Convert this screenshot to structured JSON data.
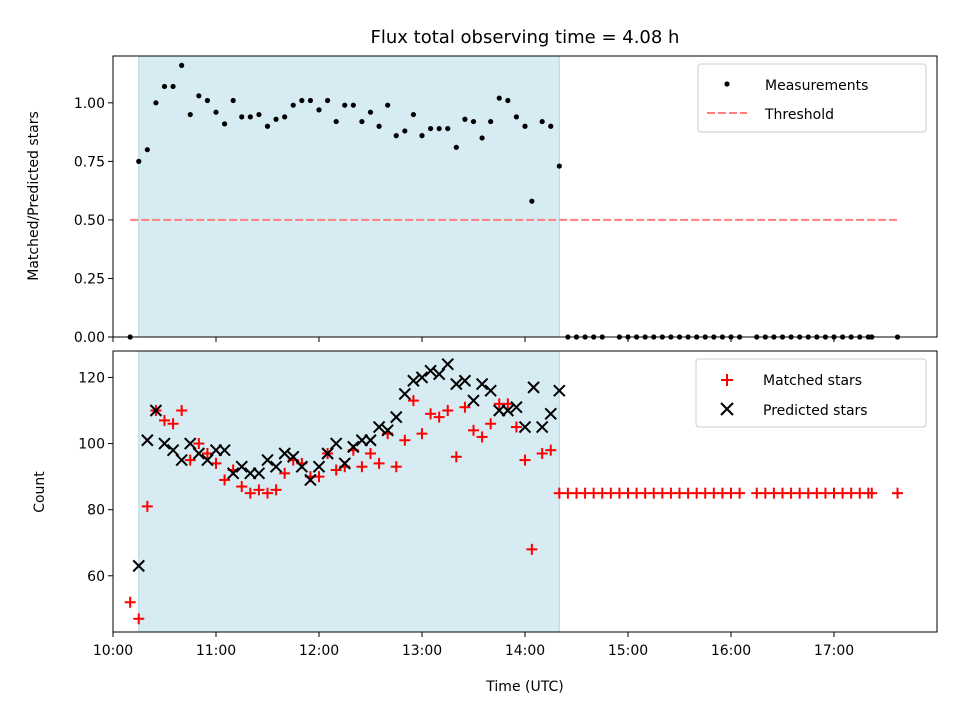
{
  "title": "Flux total observing time = 4.08 h",
  "colors": {
    "shade": "#add8e6",
    "measurement": "#000000",
    "threshold": "#ff7f7f",
    "matched": "#ff0000",
    "predicted": "#000000"
  },
  "chart_data": [
    {
      "type": "scatter",
      "ylabel": "Matched/Predicted stars",
      "xlim": [
        "10:00",
        "18:00"
      ],
      "ylim": [
        0,
        1.2
      ],
      "y_ticks": [
        "0.00",
        "0.25",
        "0.50",
        "0.75",
        "1.00"
      ],
      "observing_window": [
        "10:15",
        "14:20"
      ],
      "threshold": {
        "value": 0.5,
        "x_range": [
          "10:10",
          "17:38"
        ]
      },
      "legend": {
        "position": "top-right",
        "entries": [
          "Measurements",
          "Threshold"
        ]
      },
      "series": [
        {
          "name": "Measurements",
          "points": [
            [
              "10:10",
              0.0
            ],
            [
              "10:15",
              0.75
            ],
            [
              "10:20",
              0.8
            ],
            [
              "10:25",
              1.0
            ],
            [
              "10:30",
              1.07
            ],
            [
              "10:35",
              1.07
            ],
            [
              "10:40",
              1.16
            ],
            [
              "10:45",
              0.95
            ],
            [
              "10:50",
              1.03
            ],
            [
              "10:55",
              1.01
            ],
            [
              "11:00",
              0.96
            ],
            [
              "11:05",
              0.91
            ],
            [
              "11:10",
              1.01
            ],
            [
              "11:15",
              0.94
            ],
            [
              "11:20",
              0.94
            ],
            [
              "11:25",
              0.95
            ],
            [
              "11:30",
              0.9
            ],
            [
              "11:35",
              0.93
            ],
            [
              "11:40",
              0.94
            ],
            [
              "11:45",
              0.99
            ],
            [
              "11:50",
              1.01
            ],
            [
              "11:55",
              1.01
            ],
            [
              "12:00",
              0.97
            ],
            [
              "12:05",
              1.01
            ],
            [
              "12:10",
              0.92
            ],
            [
              "12:15",
              0.99
            ],
            [
              "12:20",
              0.99
            ],
            [
              "12:25",
              0.92
            ],
            [
              "12:30",
              0.96
            ],
            [
              "12:35",
              0.9
            ],
            [
              "12:40",
              0.99
            ],
            [
              "12:45",
              0.86
            ],
            [
              "12:50",
              0.88
            ],
            [
              "12:55",
              0.95
            ],
            [
              "13:00",
              0.86
            ],
            [
              "13:05",
              0.89
            ],
            [
              "13:10",
              0.89
            ],
            [
              "13:15",
              0.89
            ],
            [
              "13:20",
              0.81
            ],
            [
              "13:25",
              0.93
            ],
            [
              "13:30",
              0.92
            ],
            [
              "13:35",
              0.85
            ],
            [
              "13:40",
              0.92
            ],
            [
              "13:45",
              1.02
            ],
            [
              "13:50",
              1.01
            ],
            [
              "13:55",
              0.94
            ],
            [
              "14:00",
              0.9
            ],
            [
              "14:04",
              0.58
            ],
            [
              "14:10",
              0.92
            ],
            [
              "14:15",
              0.9
            ],
            [
              "14:20",
              0.73
            ],
            [
              "14:25",
              0.0
            ],
            [
              "14:30",
              0.0
            ],
            [
              "14:35",
              0.0
            ],
            [
              "14:40",
              0.0
            ],
            [
              "14:45",
              0.0
            ],
            [
              "14:55",
              0.0
            ],
            [
              "15:00",
              0.0
            ],
            [
              "15:05",
              0.0
            ],
            [
              "15:10",
              0.0
            ],
            [
              "15:15",
              0.0
            ],
            [
              "15:20",
              0.0
            ],
            [
              "15:25",
              0.0
            ],
            [
              "15:30",
              0.0
            ],
            [
              "15:35",
              0.0
            ],
            [
              "15:40",
              0.0
            ],
            [
              "15:45",
              0.0
            ],
            [
              "15:50",
              0.0
            ],
            [
              "15:55",
              0.0
            ],
            [
              "16:00",
              0.0
            ],
            [
              "16:05",
              0.0
            ],
            [
              "16:15",
              0.0
            ],
            [
              "16:20",
              0.0
            ],
            [
              "16:25",
              0.0
            ],
            [
              "16:30",
              0.0
            ],
            [
              "16:35",
              0.0
            ],
            [
              "16:40",
              0.0
            ],
            [
              "16:45",
              0.0
            ],
            [
              "16:50",
              0.0
            ],
            [
              "16:55",
              0.0
            ],
            [
              "17:00",
              0.0
            ],
            [
              "17:05",
              0.0
            ],
            [
              "17:10",
              0.0
            ],
            [
              "17:15",
              0.0
            ],
            [
              "17:20",
              0.0
            ],
            [
              "17:22",
              0.0
            ],
            [
              "17:37",
              0.0
            ]
          ]
        }
      ]
    },
    {
      "type": "scatter",
      "xlabel": "Time (UTC)",
      "ylabel": "Count",
      "xlim": [
        "10:00",
        "18:00"
      ],
      "ylim": [
        43,
        128
      ],
      "x_ticks": [
        "10:00",
        "11:00",
        "12:00",
        "13:00",
        "14:00",
        "15:00",
        "16:00",
        "17:00"
      ],
      "y_ticks": [
        "60",
        "80",
        "100",
        "120"
      ],
      "observing_window": [
        "10:15",
        "14:20"
      ],
      "legend": {
        "position": "top-right",
        "entries": [
          "Matched stars",
          "Predicted stars"
        ]
      },
      "series": [
        {
          "name": "Matched stars",
          "points": [
            [
              "10:10",
              52
            ],
            [
              "10:15",
              47
            ],
            [
              "10:20",
              81
            ],
            [
              "10:25",
              110
            ],
            [
              "10:30",
              107
            ],
            [
              "10:35",
              106
            ],
            [
              "10:40",
              110
            ],
            [
              "10:45",
              95
            ],
            [
              "10:50",
              100
            ],
            [
              "10:55",
              97
            ],
            [
              "11:00",
              94
            ],
            [
              "11:05",
              89
            ],
            [
              "11:10",
              92
            ],
            [
              "11:15",
              87
            ],
            [
              "11:20",
              85
            ],
            [
              "11:25",
              86
            ],
            [
              "11:30",
              85
            ],
            [
              "11:35",
              86
            ],
            [
              "11:40",
              91
            ],
            [
              "11:45",
              95
            ],
            [
              "11:50",
              94
            ],
            [
              "11:55",
              90
            ],
            [
              "12:00",
              90
            ],
            [
              "12:05",
              97
            ],
            [
              "12:10",
              92
            ],
            [
              "12:15",
              93
            ],
            [
              "12:20",
              98
            ],
            [
              "12:25",
              93
            ],
            [
              "12:30",
              97
            ],
            [
              "12:35",
              94
            ],
            [
              "12:40",
              103
            ],
            [
              "12:45",
              93
            ],
            [
              "12:50",
              101
            ],
            [
              "12:55",
              113
            ],
            [
              "13:00",
              103
            ],
            [
              "13:05",
              109
            ],
            [
              "13:10",
              108
            ],
            [
              "13:15",
              110
            ],
            [
              "13:20",
              96
            ],
            [
              "13:25",
              111
            ],
            [
              "13:30",
              104
            ],
            [
              "13:35",
              102
            ],
            [
              "13:40",
              106
            ],
            [
              "13:45",
              112
            ],
            [
              "13:50",
              112
            ],
            [
              "13:55",
              105
            ],
            [
              "14:00",
              95
            ],
            [
              "14:04",
              68
            ],
            [
              "14:10",
              97
            ],
            [
              "14:15",
              98
            ],
            [
              "14:20",
              85
            ],
            [
              "14:25",
              85
            ],
            [
              "14:30",
              85
            ],
            [
              "14:35",
              85
            ],
            [
              "14:40",
              85
            ],
            [
              "14:45",
              85
            ],
            [
              "14:50",
              85
            ],
            [
              "14:55",
              85
            ],
            [
              "15:00",
              85
            ],
            [
              "15:05",
              85
            ],
            [
              "15:10",
              85
            ],
            [
              "15:15",
              85
            ],
            [
              "15:20",
              85
            ],
            [
              "15:25",
              85
            ],
            [
              "15:30",
              85
            ],
            [
              "15:35",
              85
            ],
            [
              "15:40",
              85
            ],
            [
              "15:45",
              85
            ],
            [
              "15:50",
              85
            ],
            [
              "15:55",
              85
            ],
            [
              "16:00",
              85
            ],
            [
              "16:05",
              85
            ],
            [
              "16:15",
              85
            ],
            [
              "16:20",
              85
            ],
            [
              "16:25",
              85
            ],
            [
              "16:30",
              85
            ],
            [
              "16:35",
              85
            ],
            [
              "16:40",
              85
            ],
            [
              "16:45",
              85
            ],
            [
              "16:50",
              85
            ],
            [
              "16:55",
              85
            ],
            [
              "17:00",
              85
            ],
            [
              "17:05",
              85
            ],
            [
              "17:10",
              85
            ],
            [
              "17:15",
              85
            ],
            [
              "17:20",
              85
            ],
            [
              "17:22",
              85
            ],
            [
              "17:37",
              85
            ]
          ]
        },
        {
          "name": "Predicted stars",
          "points": [
            [
              "10:15",
              63
            ],
            [
              "10:20",
              101
            ],
            [
              "10:25",
              110
            ],
            [
              "10:30",
              100
            ],
            [
              "10:35",
              98
            ],
            [
              "10:40",
              95
            ],
            [
              "10:45",
              100
            ],
            [
              "10:50",
              97
            ],
            [
              "10:55",
              95
            ],
            [
              "11:00",
              98
            ],
            [
              "11:05",
              98
            ],
            [
              "11:10",
              91
            ],
            [
              "11:15",
              93
            ],
            [
              "11:20",
              91
            ],
            [
              "11:25",
              91
            ],
            [
              "11:30",
              95
            ],
            [
              "11:35",
              93
            ],
            [
              "11:40",
              97
            ],
            [
              "11:45",
              96
            ],
            [
              "11:50",
              93
            ],
            [
              "11:55",
              89
            ],
            [
              "12:00",
              93
            ],
            [
              "12:05",
              97
            ],
            [
              "12:10",
              100
            ],
            [
              "12:15",
              94
            ],
            [
              "12:20",
              99
            ],
            [
              "12:25",
              101
            ],
            [
              "12:30",
              101
            ],
            [
              "12:35",
              105
            ],
            [
              "12:40",
              104
            ],
            [
              "12:45",
              108
            ],
            [
              "12:50",
              115
            ],
            [
              "12:55",
              119
            ],
            [
              "13:00",
              120
            ],
            [
              "13:05",
              122
            ],
            [
              "13:10",
              121
            ],
            [
              "13:15",
              124
            ],
            [
              "13:20",
              118
            ],
            [
              "13:25",
              119
            ],
            [
              "13:30",
              113
            ],
            [
              "13:35",
              118
            ],
            [
              "13:40",
              116
            ],
            [
              "13:45",
              110
            ],
            [
              "13:50",
              110
            ],
            [
              "13:55",
              111
            ],
            [
              "14:00",
              105
            ],
            [
              "14:05",
              117
            ],
            [
              "14:10",
              105
            ],
            [
              "14:15",
              109
            ],
            [
              "14:20",
              116
            ]
          ]
        }
      ]
    }
  ]
}
